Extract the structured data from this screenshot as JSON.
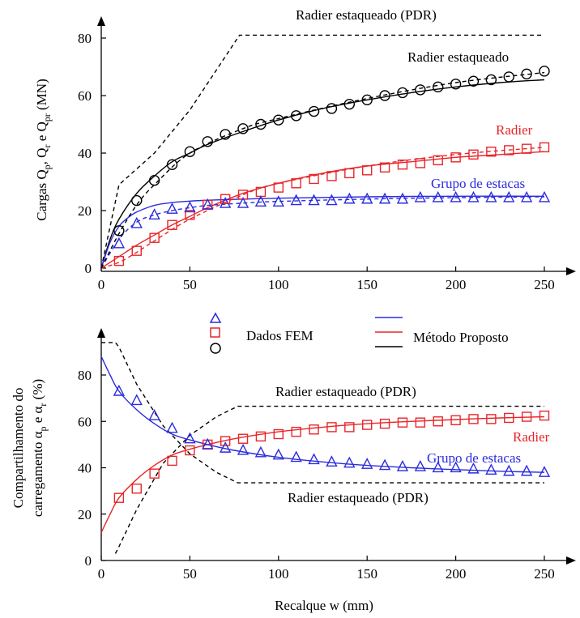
{
  "colors": {
    "pdr": "#000000",
    "piled_raft": "#000000",
    "raft": "#e8262a",
    "pile_group": "#2b2bdf"
  },
  "top": {
    "ylabel_parts": [
      "Cargas Q",
      "p",
      ",  Q",
      "r",
      " e Q",
      "pr",
      " (MN)"
    ],
    "annotations": {
      "pdr": "Radier estaqueado (PDR)",
      "piled_raft": "Radier estaqueado",
      "raft": "Radier",
      "pile_group": "Grupo de estacas"
    }
  },
  "bottom": {
    "ylabel_line1_parts": [
      "Compartilhamento do"
    ],
    "ylabel_line2_parts": [
      "carregamento α",
      "p",
      " e  α",
      "r",
      " (%)"
    ],
    "xlabel": "Recalque w (mm)",
    "annotations": {
      "pdr_top": "Radier estaqueado (PDR)",
      "pdr_bottom": "Radier estaqueado (PDR)",
      "raft": "Radier",
      "pile_group": "Grupo de estacas"
    }
  },
  "legend": {
    "fem_label": "Dados FEM",
    "method_label": "Método Proposto"
  },
  "chart_data": [
    {
      "type": "line",
      "xlabel": "",
      "ylabel": "Cargas Qp, Qr e Qpr (MN)",
      "xlim": [
        0,
        270
      ],
      "ylim": [
        0,
        87
      ],
      "xticks": [
        0,
        50,
        100,
        150,
        200,
        250
      ],
      "yticks": [
        0,
        20,
        40,
        60,
        80
      ],
      "series": [
        {
          "name": "Radier estaqueado (PDR)",
          "style": "dashed",
          "color": "#000000",
          "x": [
            0,
            10,
            30,
            50,
            78,
            250
          ],
          "y": [
            0,
            29,
            40,
            55,
            81,
            81
          ]
        },
        {
          "name": "Radier estaqueado",
          "style": "solid",
          "color": "#000000",
          "x": [
            0,
            5,
            10,
            20,
            30,
            40,
            50,
            60,
            80,
            100,
            125,
            150,
            175,
            200,
            225,
            250
          ],
          "y": [
            0,
            10,
            17,
            26,
            32,
            37,
            40,
            43,
            47.5,
            51.5,
            55.5,
            58.5,
            61,
            63,
            64.5,
            65.5
          ]
        },
        {
          "name": "Radier",
          "style": "solid",
          "color": "#e8262a",
          "x": [
            0,
            10,
            20,
            30,
            40,
            50,
            60,
            80,
            100,
            125,
            150,
            175,
            200,
            225,
            250
          ],
          "y": [
            0,
            4,
            8,
            11.5,
            15,
            18,
            21,
            26,
            29.5,
            33,
            35.5,
            37,
            38.5,
            39.5,
            40.5
          ]
        },
        {
          "name": "Grupo de estacas",
          "style": "solid",
          "color": "#2b2bdf",
          "x": [
            0,
            5,
            10,
            15,
            20,
            30,
            40,
            50,
            60,
            80,
            100,
            150,
            200,
            250
          ],
          "y": [
            0,
            9,
            14.5,
            17.5,
            19.5,
            21.8,
            22.8,
            23.3,
            23.6,
            24,
            24.3,
            24.8,
            25,
            25
          ]
        },
        {
          "name": "Grupo de estacas (FEM, tracejado)",
          "style": "dashed",
          "color": "#2b2bdf",
          "x": [
            0,
            10,
            20,
            30,
            40,
            50,
            60,
            80,
            100,
            150,
            200,
            250
          ],
          "y": [
            0,
            10,
            16,
            18.5,
            20,
            21,
            21.8,
            22.6,
            23.2,
            24,
            24.5,
            24.8
          ]
        },
        {
          "name": "Radier (FEM, tracejado)",
          "style": "dashed",
          "color": "#e8262a",
          "x": [
            0,
            10,
            20,
            30,
            50,
            80,
            100,
            150,
            200,
            250
          ],
          "y": [
            0,
            2,
            5.5,
            9.5,
            17,
            25.5,
            29.5,
            35.5,
            39.5,
            42
          ]
        },
        {
          "name": "Radier estaqueado (FEM, tracejado)",
          "style": "dashed",
          "color": "#000000",
          "x": [
            0,
            10,
            20,
            30,
            50,
            80,
            100,
            150,
            200,
            250
          ],
          "y": [
            0,
            12,
            22,
            29,
            40,
            48.5,
            52,
            59,
            64.5,
            68
          ]
        }
      ],
      "fem": {
        "x": [
          10,
          20,
          30,
          40,
          50,
          60,
          70,
          80,
          90,
          100,
          110,
          120,
          130,
          140,
          150,
          160,
          170,
          180,
          190,
          200,
          210,
          220,
          230,
          240,
          250
        ],
        "piled_raft": [
          13,
          23.5,
          30.5,
          36,
          40.5,
          44,
          46.5,
          48.5,
          50,
          51.5,
          53,
          54.5,
          55.5,
          57,
          58.5,
          60,
          61,
          62,
          63,
          64,
          65,
          65.5,
          66.5,
          67.5,
          68.5
        ],
        "raft": [
          2.5,
          6,
          10.5,
          15,
          18.5,
          22,
          24,
          25.5,
          26.5,
          28,
          29.5,
          31,
          32,
          33,
          34,
          35,
          36,
          36.5,
          37.5,
          38.5,
          39.5,
          40.5,
          41,
          41.5,
          42
        ],
        "pile_group": [
          8.5,
          15.5,
          18.5,
          20.5,
          21,
          22,
          22.5,
          22.5,
          23,
          23,
          23.5,
          23.5,
          23.5,
          24,
          24,
          24,
          24,
          24.5,
          24.5,
          24.5,
          24.5,
          24.5,
          24.5,
          24.5,
          24.5
        ]
      }
    },
    {
      "type": "line",
      "xlabel": "Recalque w (mm)",
      "ylabel": "Compartilhamento do carregamento αp e αr (%)",
      "xlim": [
        0,
        270
      ],
      "ylim": [
        0,
        95
      ],
      "xticks": [
        0,
        50,
        100,
        150,
        200,
        250
      ],
      "yticks": [
        0,
        20,
        40,
        60,
        80
      ],
      "series": [
        {
          "name": "Radier estaqueado (PDR) - radier",
          "style": "dashed",
          "color": "#000000",
          "x": [
            8,
            10,
            20,
            35,
            50,
            65,
            77,
            250
          ],
          "y": [
            3,
            6,
            22,
            42,
            54,
            62,
            66.5,
            66.5
          ]
        },
        {
          "name": "Radier estaqueado (PDR) - estacas",
          "style": "dashed",
          "color": "#000000",
          "x": [
            0,
            8,
            10,
            20,
            35,
            50,
            65,
            77,
            250
          ],
          "y": [
            94,
            94,
            92,
            76,
            58,
            46,
            38,
            33.5,
            33.5
          ]
        },
        {
          "name": "Radier",
          "style": "solid",
          "color": "#e8262a",
          "x": [
            0,
            5,
            10,
            20,
            30,
            40,
            50,
            60,
            75,
            100,
            125,
            150,
            175,
            200,
            225,
            250
          ],
          "y": [
            12,
            20,
            27,
            35,
            41,
            45.5,
            48,
            50,
            52.5,
            55.5,
            57.5,
            59,
            60,
            60.8,
            61.5,
            62
          ]
        },
        {
          "name": "Grupo de estacas",
          "style": "solid",
          "color": "#2b2bdf",
          "x": [
            0,
            5,
            10,
            20,
            30,
            40,
            50,
            60,
            75,
            100,
            125,
            150,
            175,
            200,
            225,
            250
          ],
          "y": [
            88,
            80,
            73,
            65,
            59,
            54.5,
            52,
            50,
            47.5,
            44.5,
            42.5,
            41,
            40,
            39.2,
            38.5,
            38
          ]
        }
      ],
      "fem": {
        "x": [
          10,
          20,
          30,
          40,
          50,
          60,
          70,
          80,
          90,
          100,
          110,
          120,
          130,
          140,
          150,
          160,
          170,
          180,
          190,
          200,
          210,
          220,
          230,
          240,
          250
        ],
        "raft": [
          27,
          31,
          37.5,
          43,
          47.5,
          50,
          51.5,
          52.5,
          53.5,
          54.5,
          55.5,
          56.5,
          57.5,
          57.5,
          58.5,
          59,
          59.5,
          59.5,
          60,
          60.5,
          61,
          61,
          61.5,
          62,
          62.5
        ],
        "pile_group": [
          73,
          69,
          62.5,
          57,
          52.5,
          50,
          48.5,
          47.5,
          46.5,
          45.5,
          44.5,
          43.5,
          42.5,
          42,
          41.5,
          41,
          40.5,
          40.5,
          40,
          40,
          39.5,
          39,
          38.5,
          38.5,
          38
        ]
      }
    }
  ]
}
